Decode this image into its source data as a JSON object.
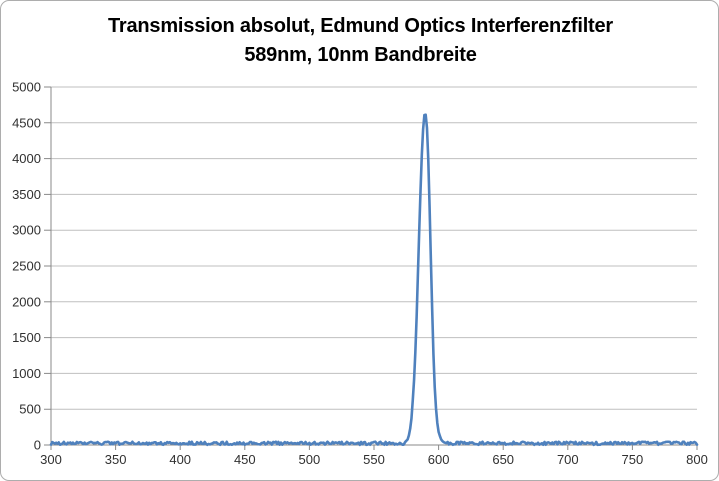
{
  "chart_data": {
    "type": "line",
    "title_lines": [
      "Transmission absolut, Edmund Optics Interferenzfilter",
      "589nm, 10nm Bandbreite"
    ],
    "title_full": "Transmission absolut, Edmund Optics Interferenzfilter 589nm, 10nm Bandbreite",
    "xlabel": "",
    "ylabel": "",
    "xlim": [
      300,
      800
    ],
    "ylim": [
      0,
      5000
    ],
    "x_ticks": [
      300,
      350,
      400,
      450,
      500,
      550,
      600,
      650,
      700,
      750,
      800
    ],
    "y_ticks": [
      0,
      500,
      1000,
      1500,
      2000,
      2500,
      3000,
      3500,
      4000,
      4500,
      5000
    ],
    "grid": "horizontal-only",
    "legend": "none",
    "sample_step_nm": 1,
    "noise_seed": 987654321,
    "series": [
      {
        "name": "Transmission absolut",
        "color": "#4F81BD",
        "peak": {
          "center_nm": 589.5,
          "max_value": 4610,
          "bandwidth_fwhm_nm": 10
        },
        "baseline": {
          "mean": 24,
          "noise_amplitude": 22
        },
        "peak_region": [
          574,
          606
        ],
        "profile_points": [
          [
            574,
            40
          ],
          [
            576,
            80
          ],
          [
            577,
            130
          ],
          [
            578,
            220
          ],
          [
            579,
            380
          ],
          [
            580,
            620
          ],
          [
            581,
            900
          ],
          [
            582,
            1300
          ],
          [
            583,
            1800
          ],
          [
            584,
            2400
          ],
          [
            585,
            3000
          ],
          [
            586,
            3560
          ],
          [
            587,
            4050
          ],
          [
            588,
            4400
          ],
          [
            589,
            4600
          ],
          [
            590,
            4610
          ],
          [
            591,
            4430
          ],
          [
            592,
            4000
          ],
          [
            593,
            3350
          ],
          [
            594,
            2600
          ],
          [
            595,
            1900
          ],
          [
            596,
            1280
          ],
          [
            597,
            820
          ],
          [
            598,
            500
          ],
          [
            599,
            300
          ],
          [
            600,
            190
          ],
          [
            601,
            120
          ],
          [
            602,
            80
          ],
          [
            603,
            55
          ],
          [
            604,
            40
          ],
          [
            605,
            32
          ],
          [
            606,
            26
          ]
        ],
        "end_point": [
          800,
          5
        ]
      }
    ]
  },
  "colors": {
    "line": "#4F81BD",
    "gridline": "#bfbfbf",
    "axis": "#898989",
    "tick_label": "#303030",
    "title": "#000000",
    "frame_border": "#adadad",
    "background": "#ffffff"
  }
}
